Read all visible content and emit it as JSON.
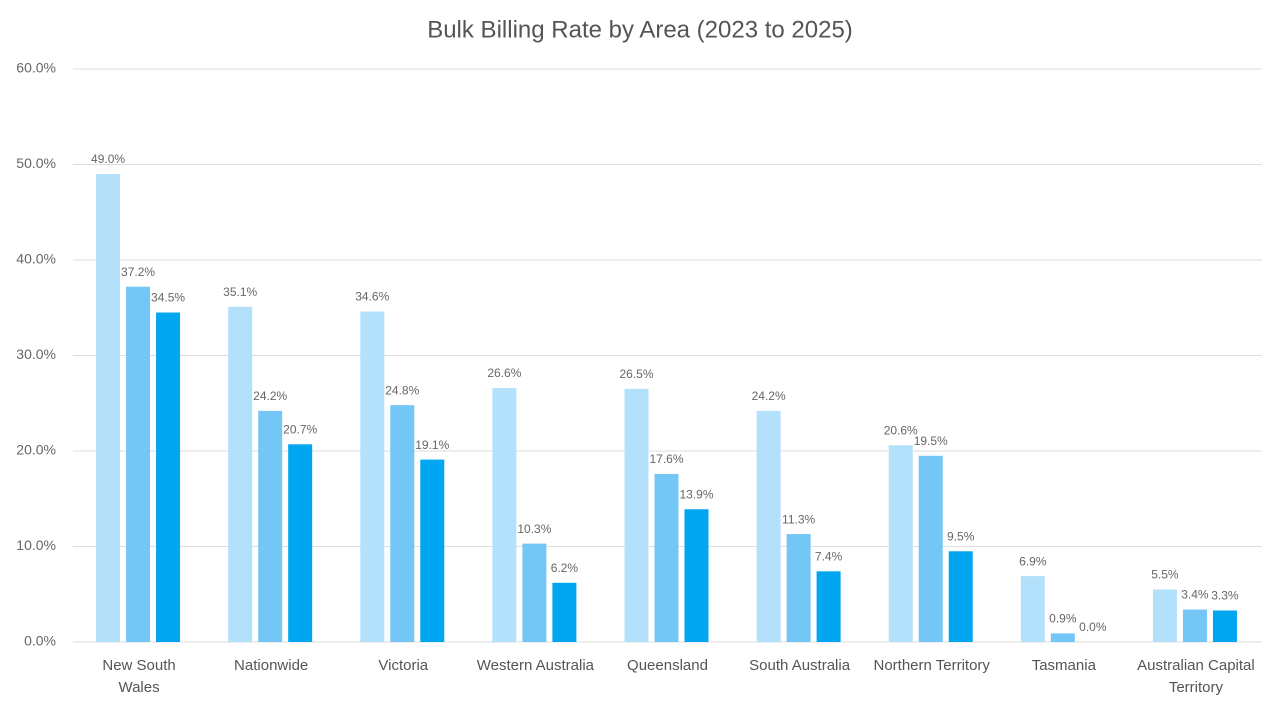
{
  "chart_data": {
    "type": "bar",
    "title": "Bulk Billing Rate by Area (2023 to 2025)",
    "categories": [
      "New South Wales",
      "Nationwide",
      "Victoria",
      "Western Australia",
      "Queensland",
      "South Australia",
      "Northern Territory",
      "Tasmania",
      "Australian Capital Territory"
    ],
    "series": [
      {
        "color": "#b3e0fb",
        "values": [
          49.0,
          35.1,
          34.6,
          26.6,
          26.5,
          24.2,
          20.6,
          6.9,
          5.5
        ],
        "value_labels": [
          "49.0%",
          "35.1%",
          "34.6%",
          "26.6%",
          "26.5%",
          "24.2%",
          "20.6%",
          "6.9%",
          "5.5%"
        ]
      },
      {
        "color": "#74c6f7",
        "values": [
          37.2,
          24.2,
          24.8,
          10.3,
          17.6,
          11.3,
          19.5,
          0.9,
          3.4
        ],
        "value_labels": [
          "37.2%",
          "24.2%",
          "24.8%",
          "10.3%",
          "17.6%",
          "11.3%",
          "19.5%",
          "0.9%",
          "3.4%"
        ]
      },
      {
        "color": "#00a6f0",
        "values": [
          34.5,
          20.7,
          19.1,
          6.2,
          13.9,
          7.4,
          9.5,
          0.0,
          3.3
        ],
        "value_labels": [
          "34.5%",
          "20.7%",
          "19.1%",
          "6.2%",
          "13.9%",
          "7.4%",
          "9.5%",
          "0.0%",
          "3.3%"
        ]
      }
    ],
    "ylim": [
      0,
      60
    ],
    "yticks": [
      {
        "value": 0,
        "label": "0.0%"
      },
      {
        "value": 10,
        "label": "10.0%"
      },
      {
        "value": 20,
        "label": "20.0%"
      },
      {
        "value": 30,
        "label": "30.0%"
      },
      {
        "value": 40,
        "label": "40.0%"
      },
      {
        "value": 50,
        "label": "50.0%"
      },
      {
        "value": 60,
        "label": "60.0%"
      }
    ],
    "grid": true
  }
}
